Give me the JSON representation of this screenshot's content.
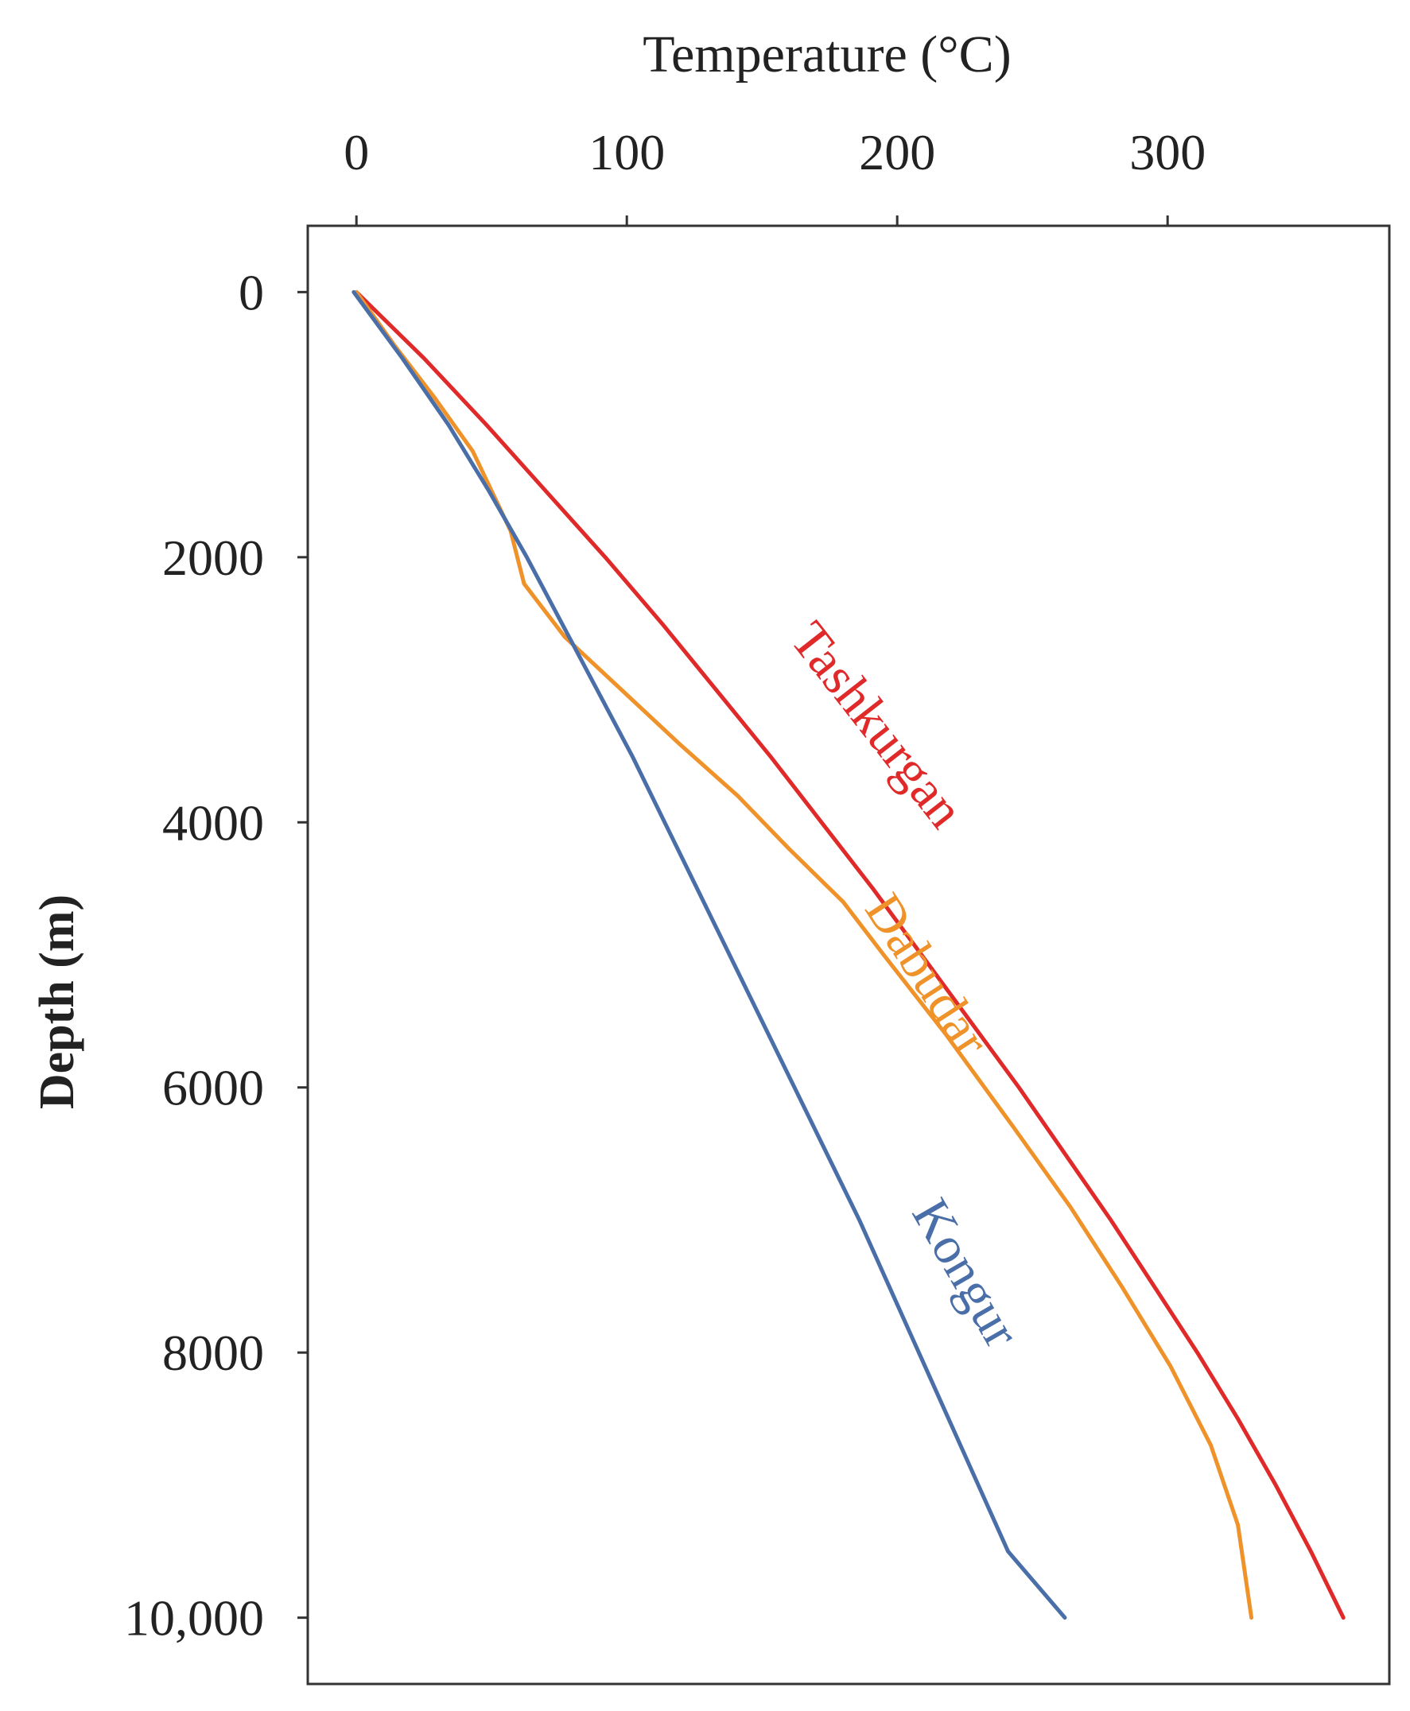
{
  "chart_data": {
    "type": "line",
    "title": "",
    "xlabel": "Temperature (°C)",
    "ylabel": "Depth (m)",
    "x_axis_position": "top",
    "y_axis_inverted": true,
    "xlim": [
      -18,
      382
    ],
    "ylim": [
      -500,
      10500
    ],
    "x_ticks": [
      {
        "value": 0,
        "label": "0"
      },
      {
        "value": 100,
        "label": "100"
      },
      {
        "value": 200,
        "label": "200"
      },
      {
        "value": 300,
        "label": "300"
      }
    ],
    "y_ticks": [
      {
        "value": 0,
        "label": "0"
      },
      {
        "value": 2000,
        "label": "2000"
      },
      {
        "value": 4000,
        "label": "4000"
      },
      {
        "value": 6000,
        "label": "6000"
      },
      {
        "value": 8000,
        "label": "8000"
      },
      {
        "value": 10000,
        "label": "10,000"
      }
    ],
    "grid": false,
    "legend": "none (inline series labels)",
    "series": [
      {
        "name": "Tashkurgan",
        "color": "#e02a2a",
        "points": [
          [
            0,
            0
          ],
          [
            25,
            500
          ],
          [
            48,
            1000
          ],
          [
            70,
            1500
          ],
          [
            92,
            2000
          ],
          [
            113,
            2500
          ],
          [
            133,
            3000
          ],
          [
            153,
            3500
          ],
          [
            172,
            4000
          ],
          [
            191,
            4500
          ],
          [
            209,
            5000
          ],
          [
            227,
            5500
          ],
          [
            245,
            6000
          ],
          [
            262,
            6500
          ],
          [
            279,
            7000
          ],
          [
            295,
            7500
          ],
          [
            311,
            8000
          ],
          [
            326,
            8500
          ],
          [
            340,
            9000
          ],
          [
            353,
            9500
          ],
          [
            365,
            10000
          ]
        ]
      },
      {
        "name": "Dabudar",
        "color": "#f0922a",
        "points": [
          [
            0,
            0
          ],
          [
            14,
            400
          ],
          [
            29,
            800
          ],
          [
            43,
            1200
          ],
          [
            57,
            1800
          ],
          [
            62,
            2200
          ],
          [
            77,
            2600
          ],
          [
            98,
            3000
          ],
          [
            119,
            3400
          ],
          [
            141,
            3800
          ],
          [
            160,
            4200
          ],
          [
            180,
            4600
          ],
          [
            195,
            5000
          ],
          [
            218,
            5600
          ],
          [
            243,
            6300
          ],
          [
            264,
            6900
          ],
          [
            283,
            7500
          ],
          [
            301,
            8100
          ],
          [
            316,
            8700
          ],
          [
            326,
            9300
          ],
          [
            331,
            10000
          ]
        ]
      },
      {
        "name": "Kongur",
        "color": "#4a6fa8",
        "points": [
          [
            -1,
            0
          ],
          [
            17,
            500
          ],
          [
            34,
            1000
          ],
          [
            49,
            1500
          ],
          [
            63,
            2000
          ],
          [
            76,
            2500
          ],
          [
            89,
            3000
          ],
          [
            102,
            3500
          ],
          [
            114,
            4000
          ],
          [
            126,
            4500
          ],
          [
            138,
            5000
          ],
          [
            150,
            5500
          ],
          [
            162,
            6000
          ],
          [
            174,
            6500
          ],
          [
            186,
            7000
          ],
          [
            197,
            7500
          ],
          [
            208,
            8000
          ],
          [
            219,
            8500
          ],
          [
            230,
            9000
          ],
          [
            241,
            9500
          ],
          [
            262,
            10000
          ]
        ]
      }
    ],
    "annotations": [
      {
        "text": "Tashkurgan",
        "color": "#e02a2a"
      },
      {
        "text": "Dabudar",
        "color": "#f0922a"
      },
      {
        "text": "Kongur",
        "color": "#4a6fa8"
      }
    ]
  }
}
